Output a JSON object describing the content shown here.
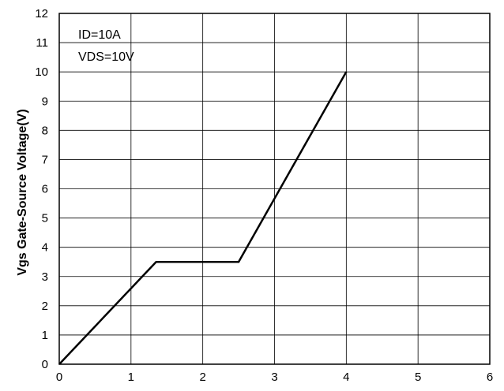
{
  "chart_data": {
    "type": "line",
    "title": "",
    "xlabel": "",
    "ylabel": "Vgs Gate-Source Voltage(V)",
    "xlim": [
      0,
      6
    ],
    "ylim": [
      0,
      12
    ],
    "x_ticks": [
      0,
      1,
      2,
      3,
      4,
      5,
      6
    ],
    "y_ticks": [
      0,
      1,
      2,
      3,
      4,
      5,
      6,
      7,
      8,
      9,
      10,
      11,
      12
    ],
    "grid": true,
    "annotations": [
      "ID=10A",
      "VDS=10V"
    ],
    "series": [
      {
        "color": "#000000",
        "x": [
          0,
          1.35,
          2.5,
          4.0
        ],
        "y": [
          0,
          3.5,
          3.5,
          10.0
        ]
      }
    ]
  }
}
